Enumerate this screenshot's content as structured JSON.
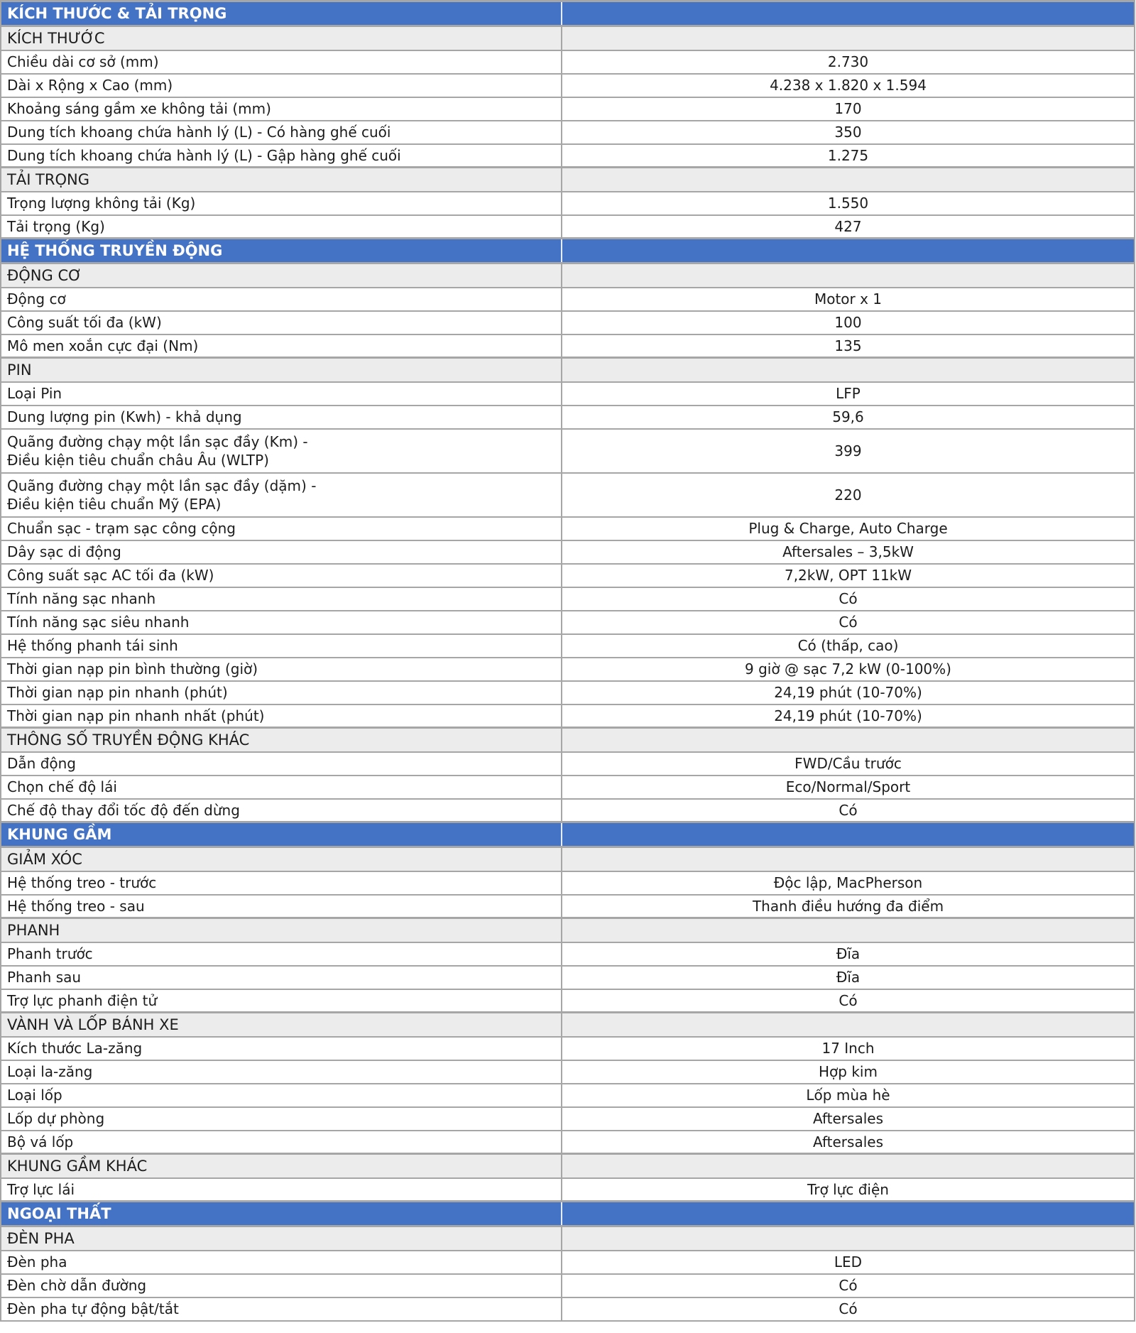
{
  "colors": {
    "section_bg": "#4472c4",
    "section_text": "#ffffff",
    "subsection_bg": "#ececec",
    "border_color": "#a6a6a6",
    "row_bg": "#ffffff",
    "text_color": "#1c1c1c"
  },
  "table": {
    "rows": [
      {
        "type": "section",
        "label": "KÍCH THƯỚC & TẢI TRỌNG",
        "value": ""
      },
      {
        "type": "subsection",
        "label": "KÍCH THƯỚC",
        "value": ""
      },
      {
        "type": "spec",
        "label": "Chiều dài cơ sở (mm)",
        "value": "2.730"
      },
      {
        "type": "spec",
        "label": "Dài x Rộng x Cao (mm)",
        "value": "4.238 x 1.820 x  1.594"
      },
      {
        "type": "spec",
        "label": "Khoảng sáng gầm xe không tải (mm)",
        "value": "170"
      },
      {
        "type": "spec",
        "label": "Dung tích khoang chứa hành lý (L) - Có hàng ghế cuối",
        "value": "350"
      },
      {
        "type": "spec",
        "label": "Dung tích khoang chứa hành lý (L) - Gập hàng ghế cuối",
        "value": "1.275"
      },
      {
        "type": "subsection",
        "label": "TẢI TRỌNG",
        "value": ""
      },
      {
        "type": "spec",
        "label": "Trọng lượng không tải (Kg)",
        "value": "1.550"
      },
      {
        "type": "spec",
        "label": "Tải trọng (Kg)",
        "value": "427"
      },
      {
        "type": "section",
        "label": "HỆ THỐNG TRUYỀN ĐỘNG",
        "value": ""
      },
      {
        "type": "subsection",
        "label": "ĐỘNG CƠ",
        "value": ""
      },
      {
        "type": "spec",
        "label": "Động cơ",
        "value": "Motor x 1"
      },
      {
        "type": "spec",
        "label": "Công suất tối đa (kW)",
        "value": "100"
      },
      {
        "type": "spec",
        "label": "Mô men xoắn cực đại (Nm)",
        "value": "135"
      },
      {
        "type": "subsection",
        "label": "PIN",
        "value": ""
      },
      {
        "type": "spec",
        "label": "Loại Pin",
        "value": "LFP"
      },
      {
        "type": "spec",
        "label": "Dung lượng pin (Kwh) - khả dụng",
        "value": "59,6"
      },
      {
        "type": "spec",
        "tall": true,
        "label": "Quãng đường chạy một lần sạc đầy (Km) -\nĐiều kiện tiêu chuẩn châu Âu (WLTP)",
        "value": "399"
      },
      {
        "type": "spec",
        "tall": true,
        "label": "Quãng đường chạy một lần sạc đầy (dặm) -\nĐiều kiện tiêu chuẩn Mỹ (EPA)",
        "value": "220"
      },
      {
        "type": "spec",
        "label": "Chuẩn sạc - trạm sạc công cộng",
        "value": "Plug & Charge, Auto Charge"
      },
      {
        "type": "spec",
        "label": "Dây sạc di động",
        "value": "Aftersales – 3,5kW"
      },
      {
        "type": "spec",
        "label": "Công suất sạc AC tối đa (kW)",
        "value": "7,2kW, OPT 11kW"
      },
      {
        "type": "spec",
        "label": "Tính năng sạc nhanh",
        "value": "Có"
      },
      {
        "type": "spec",
        "label": "Tính năng sạc siêu nhanh",
        "value": "Có"
      },
      {
        "type": "spec",
        "label": "Hệ thống phanh tái sinh",
        "value": "Có (thấp, cao)"
      },
      {
        "type": "spec",
        "label": "Thời gian nạp pin bình thường (giờ)",
        "value": "9 giờ @ sạc 7,2 kW (0-100%)"
      },
      {
        "type": "spec",
        "label": "Thời gian nạp pin nhanh (phút)",
        "value": "24,19 phút (10-70%)"
      },
      {
        "type": "spec",
        "label": "Thời gian nạp pin nhanh nhất (phút)",
        "value": "24,19 phút (10-70%)"
      },
      {
        "type": "subsection",
        "label": "THÔNG SỐ TRUYỀN ĐỘNG KHÁC",
        "value": ""
      },
      {
        "type": "spec",
        "label": "Dẫn động",
        "value": "FWD/Cầu trước"
      },
      {
        "type": "spec",
        "label": "Chọn chế độ lái",
        "value": "Eco/Normal/Sport"
      },
      {
        "type": "spec",
        "label": "Chế độ thay đổi tốc độ đến dừng",
        "value": "Có"
      },
      {
        "type": "section",
        "label": "KHUNG GẦM",
        "value": ""
      },
      {
        "type": "subsection",
        "label": "GIẢM XÓC",
        "value": ""
      },
      {
        "type": "spec",
        "label": "Hệ thống treo - trước",
        "value": "Độc lập, MacPherson"
      },
      {
        "type": "spec",
        "label": "Hệ thống treo - sau",
        "value": "Thanh điều hướng đa điểm"
      },
      {
        "type": "subsection",
        "label": "PHANH",
        "value": ""
      },
      {
        "type": "spec",
        "label": "Phanh trước",
        "value": "Đĩa"
      },
      {
        "type": "spec",
        "label": "Phanh sau",
        "value": "Đĩa"
      },
      {
        "type": "spec",
        "label": "Trợ lực phanh điện tử",
        "value": "Có"
      },
      {
        "type": "subsection",
        "label": "VÀNH VÀ LỐP BÁNH XE",
        "value": ""
      },
      {
        "type": "spec",
        "label": "Kích thước La-zăng",
        "value": "17 Inch"
      },
      {
        "type": "spec",
        "label": "Loại la-zăng",
        "value": "Hợp kim"
      },
      {
        "type": "spec",
        "label": "Loại lốp",
        "value": "Lốp mùa hè"
      },
      {
        "type": "spec",
        "label": "Lốp dự phòng",
        "value": "Aftersales"
      },
      {
        "type": "spec",
        "label": "Bộ vá lốp",
        "value": "Aftersales"
      },
      {
        "type": "subsection",
        "label": "KHUNG GẦM KHÁC",
        "value": ""
      },
      {
        "type": "spec",
        "label": "Trợ lực lái",
        "value": "Trợ lực điện"
      },
      {
        "type": "section",
        "label": "NGOẠI THẤT",
        "value": ""
      },
      {
        "type": "subsection",
        "label": "ĐÈN PHA",
        "value": ""
      },
      {
        "type": "spec",
        "label": "Đèn pha",
        "value": "LED"
      },
      {
        "type": "spec",
        "label": "Đèn chờ dẫn đường",
        "value": "Có"
      },
      {
        "type": "spec",
        "label": "Đèn pha tự động bật/tắt",
        "value": "Có"
      }
    ]
  }
}
